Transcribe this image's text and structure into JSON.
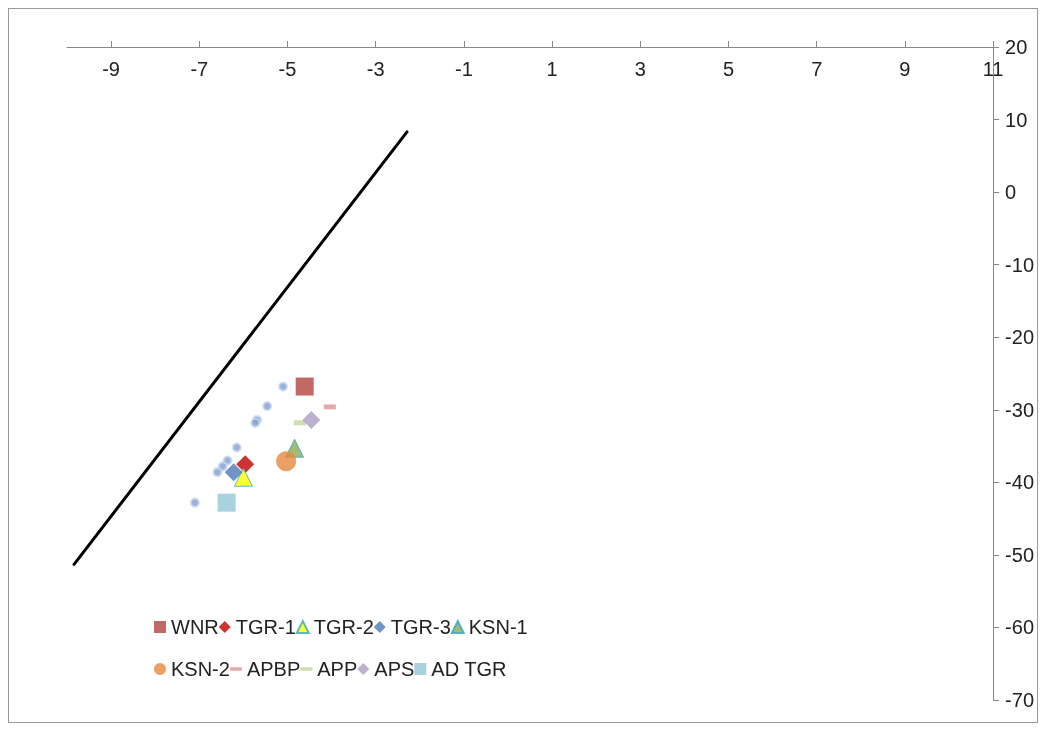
{
  "chart_data": {
    "type": "scatter",
    "xlim": [
      -10,
      11
    ],
    "xticks": [
      -9,
      -7,
      -5,
      -3,
      -1,
      1,
      3,
      5,
      7,
      9,
      11
    ],
    "ylim": [
      -70,
      20
    ],
    "yticks": [
      -70,
      -60,
      -50,
      -40,
      -30,
      -20,
      -10,
      0,
      10,
      20
    ],
    "grid": false,
    "legend": "bottom",
    "series": [
      {
        "type": "line",
        "color": "#000000",
        "marker": "none",
        "x": [
          -9.84,
          -2.29
        ],
        "values": [
          -51.3,
          8.3
        ]
      },
      {
        "color": "#7f9fcf",
        "marker": "circle",
        "x": [
          -5.1,
          -5.46,
          -5.69,
          -5.73,
          -6.15,
          -6.36,
          -6.47,
          -6.59,
          -7.1
        ],
        "values": [
          -26.8,
          -29.5,
          -31.4,
          -31.8,
          -35.2,
          -37.0,
          -37.8,
          -38.6,
          -42.8
        ]
      },
      {
        "name": "WNR",
        "color": "#b0433e",
        "marker": "square",
        "x": [
          -4.61
        ],
        "values": [
          -26.8
        ]
      },
      {
        "name": "TGR-1",
        "color": "#c00000",
        "marker": "diamond",
        "x": [
          -5.96
        ],
        "values": [
          -37.5
        ]
      },
      {
        "name": "TGR-2",
        "color": "#ffff00",
        "marker": "triangle",
        "x": [
          -6.0
        ],
        "values": [
          -39.3
        ]
      },
      {
        "name": "TGR-3",
        "color": "#4f79b5",
        "marker": "diamond",
        "x": [
          -6.22
        ],
        "values": [
          -38.6
        ]
      },
      {
        "name": "KSN-1",
        "color": "#8cab52",
        "marker": "triangle",
        "x": [
          -4.84
        ],
        "values": [
          -35.3
        ]
      },
      {
        "name": "KSN-2",
        "color": "#e58a3c",
        "marker": "circle",
        "x": [
          -5.03
        ],
        "values": [
          -37.1
        ]
      },
      {
        "name": "APBP",
        "color": "#d99694",
        "x": [
          -4.04
        ],
        "values": [
          -29.6
        ]
      },
      {
        "name": "APP",
        "color": "#c3d69b",
        "x": [
          -4.72
        ],
        "values": [
          -31.8
        ]
      },
      {
        "name": "APS",
        "color": "#ac9cc4",
        "marker": "diamond",
        "x": [
          -4.46
        ],
        "values": [
          -31.4
        ]
      },
      {
        "name": "AD TGR",
        "color": "#93c6d6",
        "marker": "square",
        "x": [
          -6.38
        ],
        "values": [
          -42.8
        ]
      }
    ]
  }
}
